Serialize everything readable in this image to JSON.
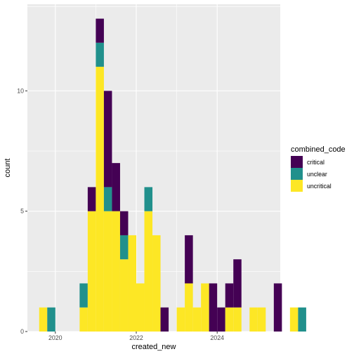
{
  "chart_data": {
    "type": "bar",
    "stacked": true,
    "xlabel": "created_new",
    "ylabel": "count",
    "x_ticks": [
      2020,
      2022,
      2024
    ],
    "y_ticks": [
      0,
      5,
      10
    ],
    "xlim": [
      2019.5,
      2025.5
    ],
    "ylim": [
      0,
      13.6
    ],
    "bin_width_years": 0.2,
    "grid": true,
    "legend_position": "right",
    "legend_title": "combined_code",
    "series": [
      {
        "name": "critical",
        "color": "#440154"
      },
      {
        "name": "unclear",
        "color": "#21908C"
      },
      {
        "name": "uncritical",
        "color": "#FDE725"
      }
    ],
    "bins": [
      {
        "x": 2019.6,
        "critical": 0,
        "unclear": 0,
        "uncritical": 1
      },
      {
        "x": 2019.8,
        "critical": 0,
        "unclear": 1,
        "uncritical": 0
      },
      {
        "x": 2020.6,
        "critical": 0,
        "unclear": 1,
        "uncritical": 1
      },
      {
        "x": 2020.8,
        "critical": 1,
        "unclear": 0,
        "uncritical": 5
      },
      {
        "x": 2021.0,
        "critical": 1,
        "unclear": 1,
        "uncritical": 11
      },
      {
        "x": 2021.2,
        "critical": 4,
        "unclear": 1,
        "uncritical": 5
      },
      {
        "x": 2021.4,
        "critical": 2,
        "unclear": 0,
        "uncritical": 5
      },
      {
        "x": 2021.6,
        "critical": 1,
        "unclear": 1,
        "uncritical": 3
      },
      {
        "x": 2021.8,
        "critical": 0,
        "unclear": 0,
        "uncritical": 4
      },
      {
        "x": 2022.0,
        "critical": 0,
        "unclear": 0,
        "uncritical": 2
      },
      {
        "x": 2022.2,
        "critical": 0,
        "unclear": 1,
        "uncritical": 5
      },
      {
        "x": 2022.4,
        "critical": 0,
        "unclear": 0,
        "uncritical": 4
      },
      {
        "x": 2022.6,
        "critical": 1,
        "unclear": 0,
        "uncritical": 0
      },
      {
        "x": 2023.0,
        "critical": 0,
        "unclear": 0,
        "uncritical": 1
      },
      {
        "x": 2023.2,
        "critical": 2,
        "unclear": 0,
        "uncritical": 2
      },
      {
        "x": 2023.4,
        "critical": 0,
        "unclear": 0,
        "uncritical": 1
      },
      {
        "x": 2023.6,
        "critical": 0,
        "unclear": 0,
        "uncritical": 2
      },
      {
        "x": 2023.8,
        "critical": 2,
        "unclear": 0,
        "uncritical": 0
      },
      {
        "x": 2024.0,
        "critical": 1,
        "unclear": 0,
        "uncritical": 0
      },
      {
        "x": 2024.2,
        "critical": 1,
        "unclear": 0,
        "uncritical": 1
      },
      {
        "x": 2024.4,
        "critical": 2,
        "unclear": 0,
        "uncritical": 1
      },
      {
        "x": 2024.8,
        "critical": 0,
        "unclear": 0,
        "uncritical": 1
      },
      {
        "x": 2025.0,
        "critical": 0,
        "unclear": 0,
        "uncritical": 1
      },
      {
        "x": 2025.4,
        "critical": 2,
        "unclear": 0,
        "uncritical": 0
      },
      {
        "x": 2025.8,
        "critical": 0,
        "unclear": 0,
        "uncritical": 1
      },
      {
        "x": 2026.0,
        "critical": 0,
        "unclear": 1,
        "uncritical": 0
      }
    ]
  }
}
